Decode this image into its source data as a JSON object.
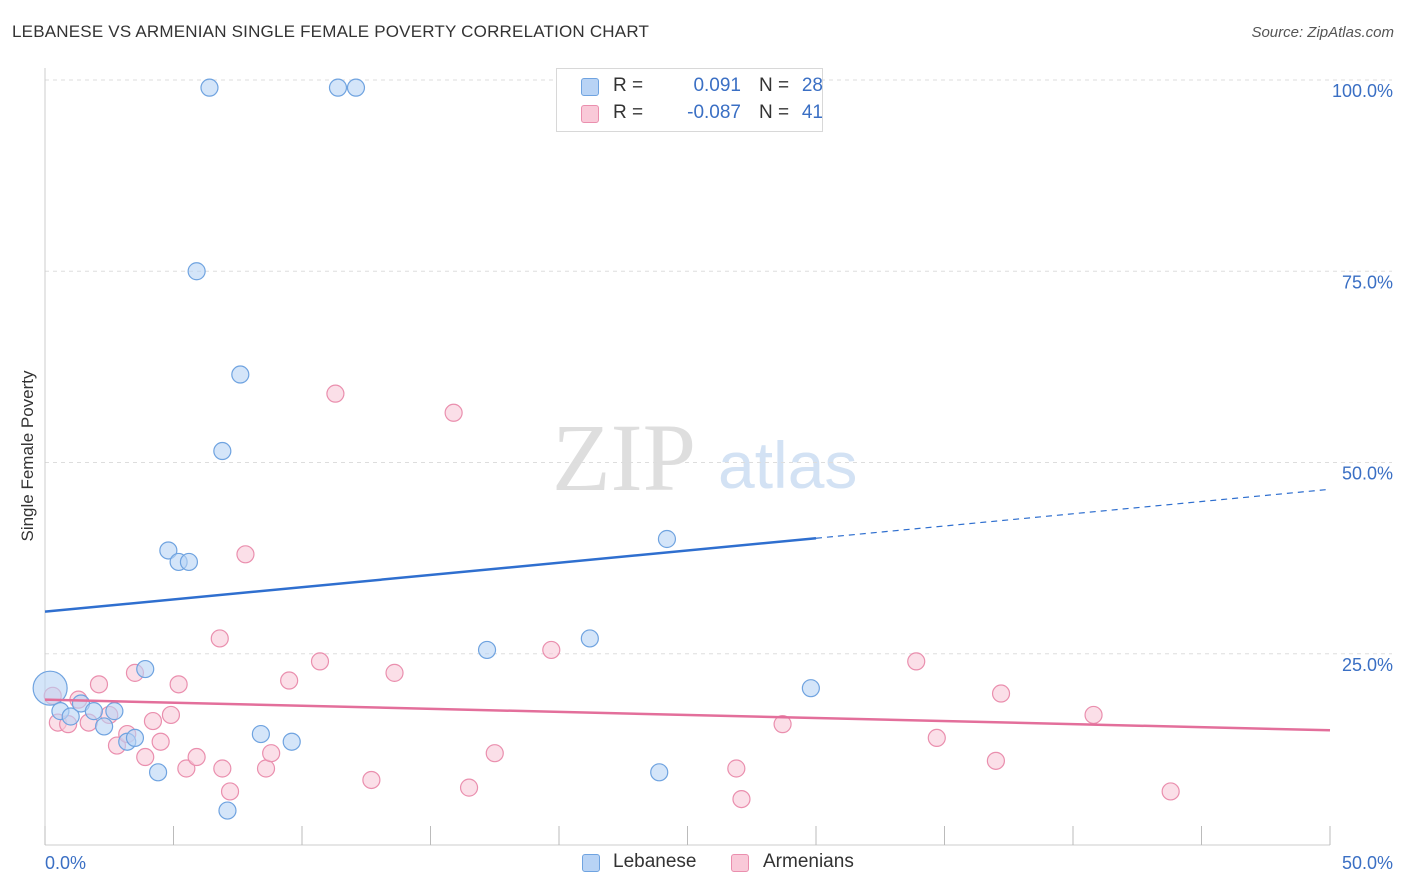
{
  "title": "LEBANESE VS ARMENIAN SINGLE FEMALE POVERTY CORRELATION CHART",
  "source": "Source: ZipAtlas.com",
  "watermark": {
    "zip": "ZIP",
    "atlas": "atlas"
  },
  "colors": {
    "lebanese_fill": "#b8d3f5",
    "lebanese_stroke": "#6fa3e0",
    "lebanese_line": "#2f6fcf",
    "armenian_fill": "#f9c9d8",
    "armenian_stroke": "#ea8fae",
    "armenian_line": "#e36f9b",
    "tick_text": "#3a6fc4",
    "grid": "#dddddd"
  },
  "legend": {
    "rows": [
      {
        "r_label": "R =",
        "r_value": "0.091",
        "n_label": "N =",
        "n_value": "28"
      },
      {
        "r_label": "R =",
        "r_value": "-0.087",
        "n_label": "N =",
        "n_value": "41"
      }
    ]
  },
  "bottom_legend": {
    "lebanese": "Lebanese",
    "armenians": "Armenians"
  },
  "chart_data": {
    "type": "scatter",
    "title": "LEBANESE VS ARMENIAN SINGLE FEMALE POVERTY CORRELATION CHART",
    "xlabel": "",
    "ylabel": "Single Female Poverty",
    "xlim": [
      0,
      50
    ],
    "ylim": [
      0,
      100
    ],
    "x_tick_labels": [
      "0.0%",
      "50.0%"
    ],
    "y_tick_labels": [
      "100.0%",
      "75.0%",
      "50.0%",
      "25.0%"
    ],
    "y_ticks": [
      100,
      75,
      50,
      25
    ],
    "grid": true,
    "legend_placement": "top-center",
    "series": [
      {
        "name": "Lebanese",
        "r": 0.091,
        "n": 28,
        "trend": {
          "x": [
            0,
            30,
            50
          ],
          "y": [
            30.5,
            40,
            46.5
          ],
          "solid_until_x": 30
        },
        "points": [
          {
            "x": 0.2,
            "y": 20.5,
            "big": true
          },
          {
            "x": 0.6,
            "y": 17.5
          },
          {
            "x": 1.0,
            "y": 16.8
          },
          {
            "x": 1.4,
            "y": 18.5
          },
          {
            "x": 1.9,
            "y": 17.5
          },
          {
            "x": 2.3,
            "y": 15.5
          },
          {
            "x": 2.7,
            "y": 17.5
          },
          {
            "x": 3.2,
            "y": 13.5
          },
          {
            "x": 3.5,
            "y": 14.0
          },
          {
            "x": 3.9,
            "y": 23.0
          },
          {
            "x": 4.4,
            "y": 9.5
          },
          {
            "x": 4.8,
            "y": 38.5
          },
          {
            "x": 5.2,
            "y": 37.0
          },
          {
            "x": 5.6,
            "y": 37.0
          },
          {
            "x": 5.9,
            "y": 75.0
          },
          {
            "x": 6.4,
            "y": 99.0
          },
          {
            "x": 6.9,
            "y": 51.5
          },
          {
            "x": 7.1,
            "y": 4.5
          },
          {
            "x": 7.6,
            "y": 61.5
          },
          {
            "x": 8.4,
            "y": 14.5
          },
          {
            "x": 9.6,
            "y": 13.5
          },
          {
            "x": 11.4,
            "y": 99.0
          },
          {
            "x": 12.1,
            "y": 99.0
          },
          {
            "x": 17.2,
            "y": 25.5
          },
          {
            "x": 21.2,
            "y": 27.0
          },
          {
            "x": 23.9,
            "y": 9.5
          },
          {
            "x": 24.2,
            "y": 40.0
          },
          {
            "x": 29.8,
            "y": 20.5
          }
        ]
      },
      {
        "name": "Armenians",
        "r": -0.087,
        "n": 41,
        "trend": {
          "x": [
            0,
            50
          ],
          "y": [
            19,
            15
          ]
        },
        "points": [
          {
            "x": 0.3,
            "y": 19.5
          },
          {
            "x": 0.5,
            "y": 16.0
          },
          {
            "x": 0.9,
            "y": 15.8
          },
          {
            "x": 1.3,
            "y": 19.0
          },
          {
            "x": 1.7,
            "y": 16.0
          },
          {
            "x": 2.1,
            "y": 21.0
          },
          {
            "x": 2.5,
            "y": 17.0
          },
          {
            "x": 2.8,
            "y": 13.0
          },
          {
            "x": 3.2,
            "y": 14.5
          },
          {
            "x": 3.5,
            "y": 22.5
          },
          {
            "x": 3.9,
            "y": 11.5
          },
          {
            "x": 4.2,
            "y": 16.2
          },
          {
            "x": 4.5,
            "y": 13.5
          },
          {
            "x": 4.9,
            "y": 17.0
          },
          {
            "x": 5.2,
            "y": 21.0
          },
          {
            "x": 5.5,
            "y": 10.0
          },
          {
            "x": 5.9,
            "y": 11.5
          },
          {
            "x": 6.8,
            "y": 27.0
          },
          {
            "x": 6.9,
            "y": 10.0
          },
          {
            "x": 7.2,
            "y": 7.0
          },
          {
            "x": 7.8,
            "y": 38.0
          },
          {
            "x": 8.6,
            "y": 10.0
          },
          {
            "x": 8.8,
            "y": 12.0
          },
          {
            "x": 9.5,
            "y": 21.5
          },
          {
            "x": 10.7,
            "y": 24.0
          },
          {
            "x": 11.3,
            "y": 59.0
          },
          {
            "x": 12.7,
            "y": 8.5
          },
          {
            "x": 13.6,
            "y": 22.5
          },
          {
            "x": 15.9,
            "y": 56.5
          },
          {
            "x": 16.5,
            "y": 7.5
          },
          {
            "x": 17.5,
            "y": 12.0
          },
          {
            "x": 19.7,
            "y": 25.5
          },
          {
            "x": 26.9,
            "y": 10.0
          },
          {
            "x": 27.1,
            "y": 6.0
          },
          {
            "x": 28.7,
            "y": 15.8
          },
          {
            "x": 33.9,
            "y": 24.0
          },
          {
            "x": 34.7,
            "y": 14.0
          },
          {
            "x": 37.0,
            "y": 11.0
          },
          {
            "x": 37.2,
            "y": 19.8
          },
          {
            "x": 40.8,
            "y": 17.0
          },
          {
            "x": 43.8,
            "y": 7.0
          }
        ]
      }
    ]
  }
}
